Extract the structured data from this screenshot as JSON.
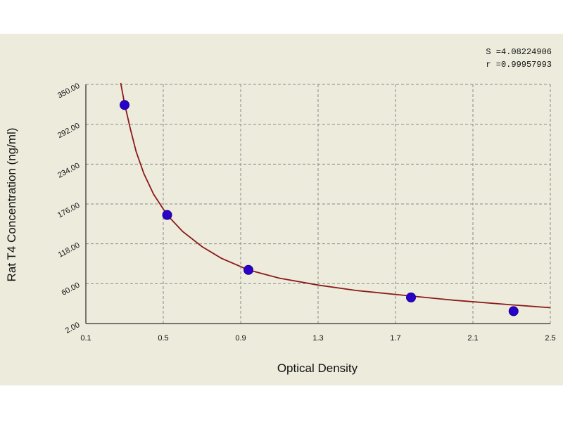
{
  "chart_data": {
    "type": "scatter",
    "xlabel": "Optical Density",
    "ylabel": "Rat T4 Concentration (ng/ml)",
    "xlim": [
      0.1,
      2.5
    ],
    "ylim": [
      2,
      350
    ],
    "x_ticks": [
      0.1,
      0.5,
      0.9,
      1.3,
      1.7,
      2.1,
      2.5
    ],
    "x_tick_labels": [
      "0.1",
      "0.5",
      "0.9",
      "1.3",
      "1.7",
      "2.1",
      "2.5"
    ],
    "y_ticks": [
      2,
      60,
      118,
      176,
      234,
      292,
      350
    ],
    "y_tick_labels": [
      "2.00",
      "60.00",
      "118.00",
      "176.00",
      "234.00",
      "292.00",
      "350.00"
    ],
    "grid": true,
    "stats": {
      "s": "S =4.08224906",
      "r": "r =0.99957993"
    },
    "series": [
      {
        "points": [
          {
            "x": 0.3,
            "y": 320
          },
          {
            "x": 0.52,
            "y": 160
          },
          {
            "x": 0.94,
            "y": 80
          },
          {
            "x": 1.78,
            "y": 40
          },
          {
            "x": 2.31,
            "y": 20
          }
        ],
        "color": "#2a00c8"
      }
    ],
    "curve": {
      "color": "#8b1a1a",
      "points": [
        [
          0.28,
          352
        ],
        [
          0.3,
          322
        ],
        [
          0.33,
          285
        ],
        [
          0.36,
          252
        ],
        [
          0.4,
          220
        ],
        [
          0.45,
          190
        ],
        [
          0.52,
          160
        ],
        [
          0.6,
          136
        ],
        [
          0.7,
          114
        ],
        [
          0.8,
          97
        ],
        [
          0.94,
          80
        ],
        [
          1.1,
          68
        ],
        [
          1.3,
          58
        ],
        [
          1.5,
          50
        ],
        [
          1.78,
          42
        ],
        [
          2.0,
          36
        ],
        [
          2.31,
          29
        ],
        [
          2.5,
          25
        ]
      ]
    }
  }
}
